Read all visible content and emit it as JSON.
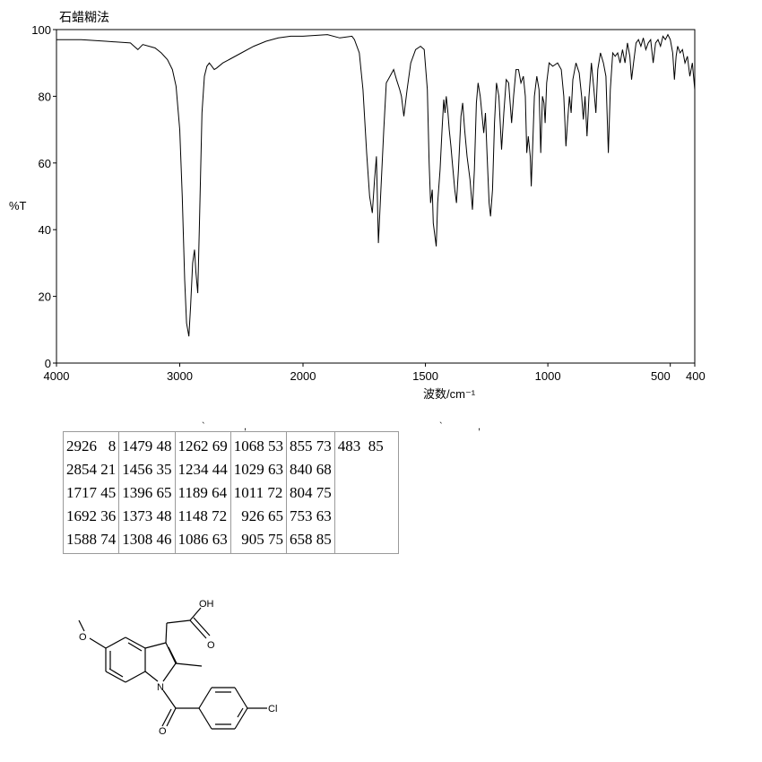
{
  "chart_data": {
    "type": "line",
    "title": "石蜡糊法",
    "xlabel": "波数/cm⁻¹",
    "ylabel": "%T",
    "xlim": [
      4000,
      400
    ],
    "ylim": [
      0,
      100
    ],
    "x_ticks": [
      4000,
      3000,
      2000,
      1500,
      1000,
      500,
      400
    ],
    "x_tick_labels": [
      "4000",
      "3000",
      "2000",
      "1500",
      "1000",
      "500",
      "400"
    ],
    "y_ticks": [
      0,
      20,
      40,
      60,
      80,
      100
    ],
    "y_tick_labels": [
      "0",
      "20",
      "40",
      "60",
      "80",
      "100"
    ],
    "grid": false,
    "series": [
      {
        "points": [
          [
            4000,
            97
          ],
          [
            3800,
            97
          ],
          [
            3600,
            96.5
          ],
          [
            3400,
            96
          ],
          [
            3370,
            95
          ],
          [
            3340,
            94
          ],
          [
            3300,
            95.5
          ],
          [
            3200,
            94.5
          ],
          [
            3150,
            93
          ],
          [
            3100,
            91
          ],
          [
            3060,
            88
          ],
          [
            3030,
            83
          ],
          [
            3000,
            70
          ],
          [
            2980,
            50
          ],
          [
            2960,
            25
          ],
          [
            2945,
            12
          ],
          [
            2926,
            8
          ],
          [
            2912,
            17
          ],
          [
            2895,
            30
          ],
          [
            2880,
            34
          ],
          [
            2868,
            27
          ],
          [
            2854,
            21
          ],
          [
            2840,
            42
          ],
          [
            2820,
            75
          ],
          [
            2800,
            86
          ],
          [
            2780,
            89
          ],
          [
            2760,
            90
          ],
          [
            2740,
            89
          ],
          [
            2720,
            88
          ],
          [
            2700,
            88.5
          ],
          [
            2650,
            90
          ],
          [
            2600,
            91
          ],
          [
            2500,
            93
          ],
          [
            2400,
            95
          ],
          [
            2300,
            96.5
          ],
          [
            2200,
            97.5
          ],
          [
            2100,
            98
          ],
          [
            2000,
            98
          ],
          [
            1900,
            98.5
          ],
          [
            1850,
            97.5
          ],
          [
            1800,
            98
          ],
          [
            1790,
            97
          ],
          [
            1770,
            93
          ],
          [
            1755,
            82
          ],
          [
            1740,
            63
          ],
          [
            1728,
            50
          ],
          [
            1717,
            45
          ],
          [
            1708,
            55
          ],
          [
            1700,
            62
          ],
          [
            1692,
            36
          ],
          [
            1682,
            52
          ],
          [
            1670,
            70
          ],
          [
            1660,
            84
          ],
          [
            1645,
            86
          ],
          [
            1630,
            88
          ],
          [
            1618,
            85
          ],
          [
            1605,
            82
          ],
          [
            1598,
            80
          ],
          [
            1588,
            74
          ],
          [
            1575,
            82
          ],
          [
            1560,
            90
          ],
          [
            1540,
            94
          ],
          [
            1520,
            95
          ],
          [
            1505,
            94
          ],
          [
            1492,
            82
          ],
          [
            1485,
            60
          ],
          [
            1479,
            48
          ],
          [
            1472,
            52
          ],
          [
            1468,
            42
          ],
          [
            1456,
            35
          ],
          [
            1450,
            48
          ],
          [
            1440,
            58
          ],
          [
            1432,
            70
          ],
          [
            1425,
            79
          ],
          [
            1420,
            75
          ],
          [
            1415,
            80
          ],
          [
            1408,
            75
          ],
          [
            1403,
            70
          ],
          [
            1396,
            65
          ],
          [
            1390,
            60
          ],
          [
            1380,
            52
          ],
          [
            1373,
            48
          ],
          [
            1365,
            58
          ],
          [
            1355,
            74
          ],
          [
            1348,
            78
          ],
          [
            1340,
            70
          ],
          [
            1330,
            62
          ],
          [
            1318,
            55
          ],
          [
            1308,
            46
          ],
          [
            1300,
            58
          ],
          [
            1292,
            78
          ],
          [
            1285,
            84
          ],
          [
            1276,
            80
          ],
          [
            1262,
            69
          ],
          [
            1255,
            75
          ],
          [
            1248,
            62
          ],
          [
            1240,
            48
          ],
          [
            1234,
            44
          ],
          [
            1226,
            52
          ],
          [
            1218,
            72
          ],
          [
            1210,
            84
          ],
          [
            1200,
            80
          ],
          [
            1189,
            64
          ],
          [
            1180,
            75
          ],
          [
            1170,
            85
          ],
          [
            1160,
            84
          ],
          [
            1148,
            72
          ],
          [
            1140,
            80
          ],
          [
            1130,
            88
          ],
          [
            1120,
            88
          ],
          [
            1110,
            84
          ],
          [
            1100,
            86
          ],
          [
            1092,
            80
          ],
          [
            1086,
            63
          ],
          [
            1080,
            68
          ],
          [
            1072,
            62
          ],
          [
            1068,
            53
          ],
          [
            1062,
            65
          ],
          [
            1055,
            80
          ],
          [
            1045,
            86
          ],
          [
            1036,
            82
          ],
          [
            1029,
            63
          ],
          [
            1022,
            80
          ],
          [
            1016,
            78
          ],
          [
            1011,
            72
          ],
          [
            1005,
            84
          ],
          [
            995,
            90
          ],
          [
            980,
            89
          ],
          [
            960,
            90
          ],
          [
            945,
            88
          ],
          [
            935,
            80
          ],
          [
            926,
            65
          ],
          [
            920,
            72
          ],
          [
            912,
            80
          ],
          [
            905,
            75
          ],
          [
            898,
            85
          ],
          [
            885,
            90
          ],
          [
            872,
            87
          ],
          [
            862,
            80
          ],
          [
            855,
            73
          ],
          [
            848,
            80
          ],
          [
            840,
            68
          ],
          [
            832,
            80
          ],
          [
            822,
            90
          ],
          [
            812,
            82
          ],
          [
            804,
            75
          ],
          [
            796,
            88
          ],
          [
            785,
            93
          ],
          [
            773,
            90
          ],
          [
            763,
            86
          ],
          [
            753,
            63
          ],
          [
            745,
            82
          ],
          [
            735,
            93
          ],
          [
            725,
            92
          ],
          [
            715,
            93
          ],
          [
            705,
            90
          ],
          [
            695,
            94
          ],
          [
            685,
            90
          ],
          [
            675,
            96
          ],
          [
            665,
            92
          ],
          [
            658,
            85
          ],
          [
            650,
            90
          ],
          [
            640,
            96
          ],
          [
            630,
            97
          ],
          [
            620,
            95
          ],
          [
            610,
            97.5
          ],
          [
            600,
            94
          ],
          [
            590,
            96
          ],
          [
            580,
            97
          ],
          [
            570,
            90
          ],
          [
            560,
            96
          ],
          [
            550,
            97
          ],
          [
            540,
            95
          ],
          [
            530,
            98
          ],
          [
            520,
            97
          ],
          [
            510,
            98.5
          ],
          [
            500,
            97
          ],
          [
            490,
            93
          ],
          [
            483,
            85
          ],
          [
            476,
            92
          ],
          [
            470,
            95
          ],
          [
            460,
            93
          ],
          [
            450,
            94
          ],
          [
            440,
            90
          ],
          [
            430,
            92
          ],
          [
            420,
            86
          ],
          [
            410,
            90
          ],
          [
            400,
            82
          ]
        ]
      }
    ]
  },
  "peak_table": {
    "columns": [
      [
        "2926   8",
        "2854 21",
        "1717 45",
        "1692 36",
        "1588 74"
      ],
      [
        "1479 48",
        "1456 35",
        "1396 65",
        "1373 48",
        "1308 46"
      ],
      [
        "1262 69",
        "1234 44",
        "1189 64",
        "1148 72",
        "1086 63"
      ],
      [
        "1068 53",
        "1029 63",
        "1011 72",
        "  926 65",
        "  905 75"
      ],
      [
        "855 73",
        "840 68",
        "804 75",
        "753 63",
        "658 85"
      ],
      [
        "483  85"
      ]
    ]
  },
  "structure": {
    "oh_label": "OH",
    "o_carbonyl_label": "O",
    "o_methoxy_label": "O",
    "n_label": "N",
    "cl_label": "Cl"
  }
}
